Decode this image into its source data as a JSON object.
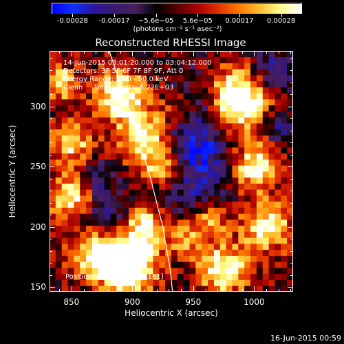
{
  "colors": {
    "background": "#000000",
    "foreground": "#ffffff",
    "colormap": [
      "#0000ff",
      "#1030ff",
      "#2a15a0",
      "#3a1a6e",
      "#4a2060",
      "#000000",
      "#550000",
      "#a80000",
      "#e03000",
      "#ff7a00",
      "#ffc030",
      "#ffff90",
      "#ffffff"
    ]
  },
  "colorbar": {
    "tick_labels": [
      "-0.00028",
      "-0.00017",
      "−5.6e−05",
      "5.6e−05",
      "0.00017",
      "0.00028"
    ],
    "units": "(photons cm⁻² s⁻¹ asec⁻²)"
  },
  "chart_data": {
    "type": "heatmap",
    "title": "Reconstructed RHESSI Image",
    "xlabel": "Heliocentric X (arcsec)",
    "ylabel": "Heliocentric Y (arcsec)",
    "xlim": [
      832,
      1032
    ],
    "ylim": [
      146,
      346
    ],
    "x_ticks": [
      "850",
      "900",
      "950",
      "1000"
    ],
    "y_ticks": [
      "150",
      "200",
      "250",
      "300"
    ],
    "x_tick_values": [
      850,
      900,
      950,
      1000
    ],
    "y_tick_values": [
      150,
      200,
      250,
      300
    ],
    "color_range": [
      -0.00028,
      0.00028
    ],
    "limb_curve": [
      [
        881,
        346
      ],
      [
        900,
        290
      ],
      [
        915,
        240
      ],
      [
        925,
        200
      ],
      [
        931,
        165
      ],
      [
        933,
        146
      ]
    ],
    "annotations": [
      "14-Jun-2015 03:01:20.000 to 03:04:12.000",
      "Detectors: 3F 5F 6F 7F 8F 9F, Att 0",
      "Energy Range: 25.0 - 50.0 keV",
      "Clean     Total counts: 5.22E+03"
    ],
    "peak_label": "Position of Peak = [893,161]"
  },
  "footer": "16-Jun-2015 00:59"
}
